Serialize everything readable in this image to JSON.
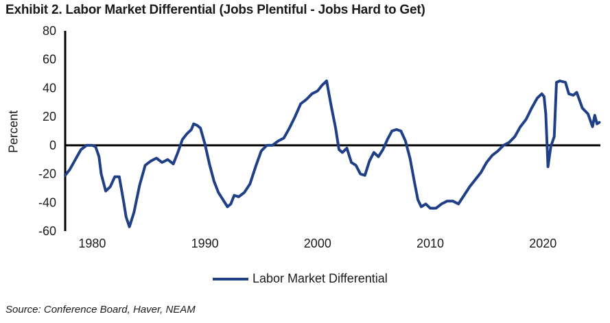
{
  "title": "Exhibit 2. Labor Market Differential (Jobs Plentiful - Jobs Hard to Get)",
  "source": "Source: Conference Board, Haver, NEAM",
  "colors": {
    "series": "#1f3f87",
    "axis": "#000000"
  },
  "chart_data": {
    "type": "line",
    "title": "Exhibit 2. Labor Market Differential (Jobs Plentiful - Jobs Hard to Get)",
    "xlabel": "",
    "ylabel": "Percent",
    "xlim": [
      1977.6,
      2025.1
    ],
    "ylim": [
      -60,
      80
    ],
    "x_ticks": [
      1980,
      1990,
      2000,
      2010,
      2020
    ],
    "y_ticks": [
      80,
      60,
      40,
      20,
      0,
      -20,
      -40,
      -60
    ],
    "grid": false,
    "legend_position": "bottom-center",
    "series": [
      {
        "name": "Labor Market Differential",
        "x": [
          1977.6,
          1978.0,
          1978.5,
          1979.0,
          1979.5,
          1980.0,
          1980.3,
          1980.6,
          1980.8,
          1981.2,
          1981.6,
          1982.0,
          1982.4,
          1982.8,
          1983.0,
          1983.3,
          1983.7,
          1984.2,
          1984.7,
          1985.2,
          1985.7,
          1986.2,
          1986.7,
          1987.2,
          1987.6,
          1988.0,
          1988.4,
          1988.8,
          1989.0,
          1989.3,
          1989.6,
          1990.0,
          1990.4,
          1990.8,
          1991.2,
          1991.6,
          1992.0,
          1992.3,
          1992.6,
          1993.0,
          1993.5,
          1994.0,
          1994.5,
          1995.0,
          1995.5,
          1996.0,
          1996.5,
          1997.0,
          1997.5,
          1998.0,
          1998.5,
          1999.0,
          1999.5,
          2000.0,
          2000.4,
          2000.8,
          2001.2,
          2001.6,
          2001.9,
          2002.2,
          2002.6,
          2003.0,
          2003.4,
          2003.8,
          2004.2,
          2004.6,
          2005.0,
          2005.4,
          2005.8,
          2006.2,
          2006.6,
          2007.0,
          2007.4,
          2007.8,
          2008.2,
          2008.6,
          2008.9,
          2009.2,
          2009.6,
          2010.0,
          2010.5,
          2011.0,
          2011.5,
          2012.0,
          2012.5,
          2013.0,
          2013.5,
          2014.0,
          2014.5,
          2015.0,
          2015.5,
          2016.0,
          2016.5,
          2017.0,
          2017.5,
          2018.0,
          2018.5,
          2019.0,
          2019.5,
          2019.9,
          2020.1,
          2020.25,
          2020.45,
          2020.7,
          2021.0,
          2021.2,
          2021.5,
          2022.0,
          2022.3,
          2022.7,
          2023.0,
          2023.5,
          2024.0,
          2024.4,
          2024.6,
          2024.8,
          2025.0
        ],
        "values": [
          -21,
          -17,
          -10,
          -3,
          0,
          0,
          -1,
          -8,
          -20,
          -32,
          -29,
          -22,
          -22,
          -40,
          -50,
          -57,
          -47,
          -28,
          -14,
          -11,
          -9,
          -12,
          -10,
          -13,
          -5,
          4,
          8,
          11,
          15,
          14,
          12,
          1,
          -13,
          -25,
          -33,
          -38,
          -43,
          -41,
          -35,
          -36,
          -33,
          -27,
          -15,
          -4,
          0,
          0,
          3,
          5,
          12,
          20,
          29,
          32,
          36,
          38,
          42,
          45,
          28,
          12,
          -3,
          -5,
          -2,
          -12,
          -14,
          -20,
          -21,
          -11,
          -5,
          -8,
          -3,
          4,
          10,
          11,
          10,
          3,
          -9,
          -26,
          -38,
          -43,
          -41,
          -44,
          -44,
          -41,
          -39,
          -39,
          -41,
          -35,
          -29,
          -24,
          -19,
          -12,
          -7,
          -4,
          0,
          2,
          6,
          13,
          18,
          26,
          33,
          36,
          34,
          22,
          -15,
          -1,
          6,
          44,
          45,
          44,
          36,
          35,
          37,
          26,
          22,
          13,
          21,
          15,
          16
        ]
      }
    ]
  }
}
